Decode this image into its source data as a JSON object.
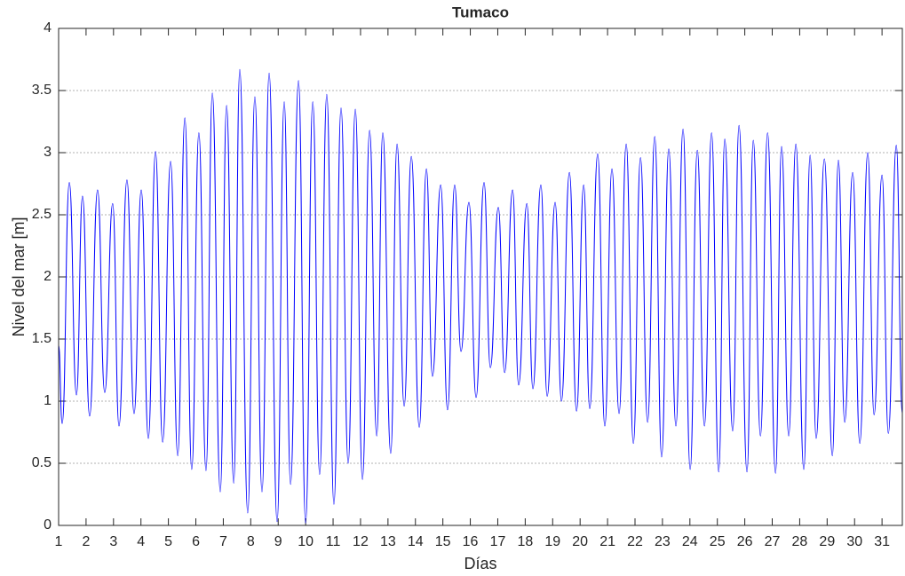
{
  "chart_data": {
    "type": "line",
    "title": "Tumaco",
    "x_label": "Días",
    "y_label": "Nivel del mar [m]",
    "xlim": [
      1,
      31.74
    ],
    "ylim": [
      0,
      4
    ],
    "xticks": [
      1,
      2,
      3,
      4,
      5,
      6,
      7,
      8,
      9,
      10,
      11,
      12,
      13,
      14,
      15,
      16,
      17,
      18,
      19,
      20,
      21,
      22,
      23,
      24,
      25,
      26,
      27,
      28,
      29,
      30,
      31
    ],
    "yticks": [
      0,
      0.5,
      1,
      1.5,
      2,
      2.5,
      3,
      3.5,
      4
    ],
    "grid": true,
    "series": [
      {
        "name": "Tumaco",
        "color": "#0000ff",
        "x": [
          1.0,
          1.13,
          1.39,
          1.65,
          1.87,
          2.13,
          2.42,
          2.68,
          2.97,
          3.2,
          3.49,
          3.75,
          4.01,
          4.27,
          4.53,
          4.79,
          5.08,
          5.34,
          5.6,
          5.85,
          6.11,
          6.37,
          6.6,
          6.89,
          7.12,
          7.38,
          7.6,
          7.89,
          8.15,
          8.41,
          8.67,
          8.96,
          9.22,
          9.45,
          9.74,
          10.0,
          10.26,
          10.51,
          10.77,
          11.03,
          11.29,
          11.55,
          11.81,
          12.07,
          12.33,
          12.59,
          12.81,
          13.1,
          13.33,
          13.59,
          13.85,
          14.14,
          14.4,
          14.62,
          14.92,
          15.17,
          15.43,
          15.66,
          15.95,
          16.21,
          16.5,
          16.73,
          17.02,
          17.25,
          17.54,
          17.76,
          18.06,
          18.28,
          18.57,
          18.8,
          19.09,
          19.32,
          19.61,
          19.87,
          20.13,
          20.35,
          20.64,
          20.9,
          21.16,
          21.42,
          21.68,
          21.94,
          22.2,
          22.46,
          22.72,
          22.97,
          23.23,
          23.49,
          23.75,
          24.01,
          24.27,
          24.53,
          24.79,
          25.05,
          25.27,
          25.56,
          25.79,
          26.08,
          26.31,
          26.57,
          26.83,
          27.12,
          27.34,
          27.6,
          27.86,
          28.15,
          28.38,
          28.6,
          28.9,
          29.19,
          29.41,
          29.64,
          29.93,
          30.19,
          30.48,
          30.71,
          31.0,
          31.23,
          31.52,
          31.74
        ],
        "values": [
          1.45,
          0.82,
          2.76,
          1.05,
          2.65,
          0.88,
          2.7,
          1.07,
          2.59,
          0.8,
          2.78,
          0.9,
          2.7,
          0.7,
          3.01,
          0.67,
          2.93,
          0.56,
          3.28,
          0.45,
          3.16,
          0.44,
          3.48,
          0.27,
          3.38,
          0.34,
          3.67,
          0.1,
          3.45,
          0.27,
          3.64,
          0.03,
          3.41,
          0.33,
          3.58,
          0.02,
          3.41,
          0.41,
          3.47,
          0.17,
          3.36,
          0.5,
          3.35,
          0.37,
          3.18,
          0.72,
          3.16,
          0.58,
          3.07,
          0.96,
          2.97,
          0.79,
          2.87,
          1.2,
          2.74,
          0.93,
          2.74,
          1.4,
          2.6,
          1.03,
          2.76,
          1.27,
          2.56,
          1.23,
          2.7,
          1.13,
          2.59,
          1.1,
          2.74,
          1.04,
          2.6,
          1.0,
          2.84,
          0.92,
          2.74,
          0.94,
          2.99,
          0.8,
          2.87,
          0.9,
          3.07,
          0.66,
          2.96,
          0.83,
          3.13,
          0.55,
          3.03,
          0.8,
          3.19,
          0.45,
          3.02,
          0.8,
          3.16,
          0.43,
          3.11,
          0.76,
          3.22,
          0.43,
          3.1,
          0.72,
          3.16,
          0.42,
          3.05,
          0.72,
          3.07,
          0.45,
          2.98,
          0.7,
          2.95,
          0.56,
          2.94,
          0.83,
          2.84,
          0.66,
          3.0,
          0.89,
          2.82,
          0.74,
          3.06,
          0.9
        ]
      }
    ]
  }
}
